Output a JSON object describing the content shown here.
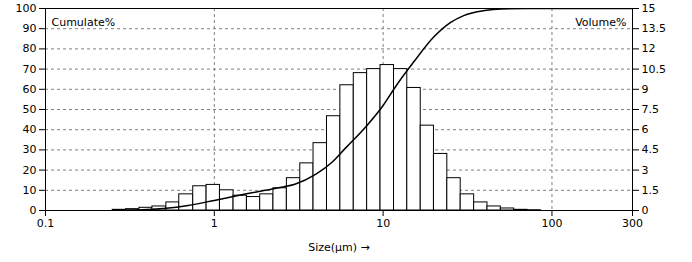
{
  "chart_data": {
    "type": "histogram",
    "x_label": "Size(μm)",
    "log": "x",
    "grid": true,
    "xlim": [
      0.1,
      300
    ],
    "xticks": [
      0.1,
      1,
      10,
      100,
      300
    ],
    "ylim": [
      0,
      100
    ],
    "yticks": [
      0,
      10,
      20,
      30,
      40,
      50,
      60,
      70,
      80,
      90,
      100
    ],
    "y2lim": [
      0,
      15
    ],
    "y2ticks": [
      0,
      1.5,
      3,
      4.5,
      6,
      7.5,
      9,
      10.5,
      12,
      13.5,
      15
    ],
    "bins": [
      0.25,
      0.3,
      0.36,
      0.43,
      0.52,
      0.62,
      0.75,
      0.9,
      1.08,
      1.3,
      1.56,
      1.87,
      2.24,
      2.69,
      3.23,
      3.87,
      4.65,
      5.58,
      6.7,
      8.04,
      9.65,
      11.6,
      13.9,
      16.7,
      20,
      24,
      28.8,
      34.6,
      41.5,
      49.8,
      59.7,
      71.7,
      86
    ],
    "series": [
      {
        "name": "Volume%",
        "type": "bar",
        "axis": "y2",
        "color": "#ffffff",
        "values": [
          0.05,
          0.1,
          0.2,
          0.3,
          0.6,
          1.2,
          1.8,
          1.9,
          1.5,
          1.1,
          1.0,
          1.2,
          1.65,
          2.4,
          3.5,
          5.0,
          7.0,
          9.3,
          10.2,
          10.5,
          10.8,
          10.5,
          9.1,
          6.3,
          4.2,
          2.4,
          1.2,
          0.6,
          0.3,
          0.15,
          0.05,
          0.02
        ]
      },
      {
        "name": "Cumulate%",
        "type": "line",
        "axis": "y",
        "color": "#000000",
        "x": [
          0.25,
          0.3,
          0.5,
          0.7,
          1,
          1.5,
          2,
          2.5,
          3,
          4,
          5,
          6,
          8,
          10,
          12,
          15,
          20,
          25,
          30,
          40,
          50,
          70,
          300
        ],
        "values": [
          0,
          0.1,
          1,
          2.5,
          5,
          8,
          10,
          11.5,
          13,
          18,
          24,
          31,
          42,
          52,
          62,
          73,
          86,
          93,
          96.5,
          99,
          99.8,
          100,
          100
        ]
      }
    ]
  }
}
